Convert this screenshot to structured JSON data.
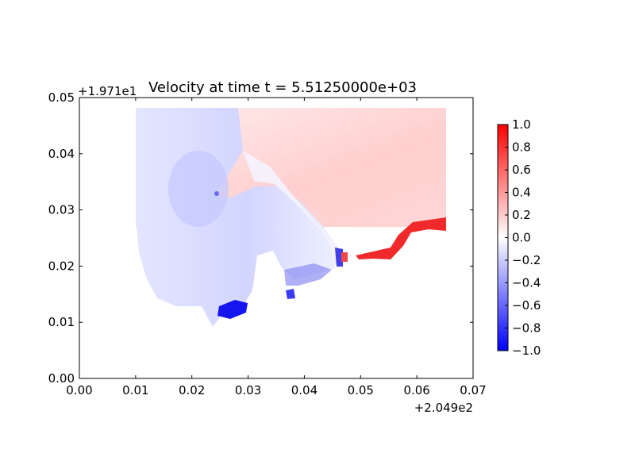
{
  "chart_data": {
    "type": "heatmap",
    "title": "Velocity at time t = 5.51250000e+03",
    "xlabel": "",
    "ylabel": "",
    "xlim": [
      0.0,
      0.07
    ],
    "ylim": [
      0.0,
      0.05
    ],
    "x_ticks": [
      "0.00",
      "0.01",
      "0.02",
      "0.03",
      "0.04",
      "0.05",
      "0.06",
      "0.07"
    ],
    "y_ticks": [
      "0.00",
      "0.01",
      "0.02",
      "0.03",
      "0.04",
      "0.05"
    ],
    "x_offset": "+2.049e2",
    "y_offset": "+1.971e1",
    "colorbar": {
      "colormap": "bwr",
      "range": [
        -1.0,
        1.0
      ],
      "ticks": [
        "1.0",
        "0.8",
        "0.6",
        "0.4",
        "0.2",
        "0.0",
        "−0.2",
        "−0.4",
        "−0.6",
        "−0.8",
        "−1.0"
      ],
      "colors": {
        "low": "#0000ff",
        "mid": "#ffffff",
        "high": "#ff0000"
      }
    },
    "grid": false,
    "field_regions": [
      {
        "name": "northeast-positive",
        "value": 0.2
      },
      {
        "name": "western-basin-negative",
        "value": -0.15
      },
      {
        "name": "southeast-edge-strong-positive",
        "value": 0.95
      },
      {
        "name": "southern-pocket-strong-negative",
        "value": -0.95
      },
      {
        "name": "southern-inlet-negative",
        "value": -0.6
      }
    ]
  }
}
